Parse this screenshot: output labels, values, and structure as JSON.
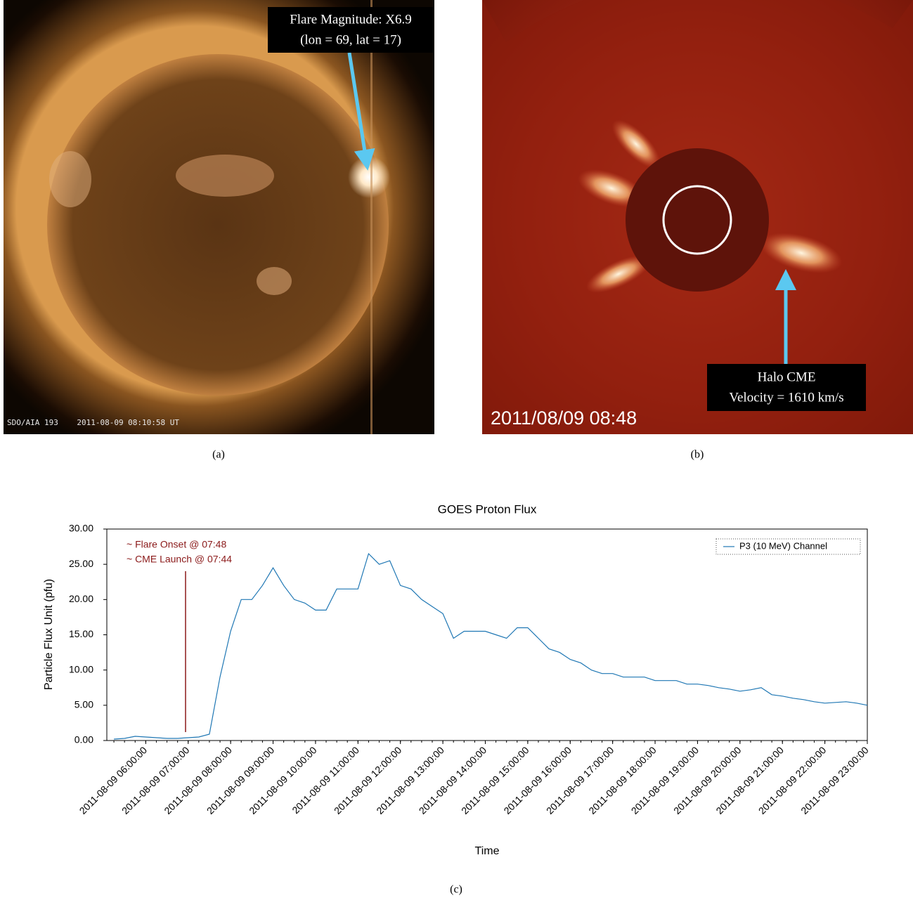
{
  "panels": [
    {
      "caption": "(a)",
      "annotation": [
        "Flare Magnitude: X6.9",
        "(lon = 69, lat = 17)"
      ],
      "stamp": "SDO/AIA 193    2011-08-09 08:10:58 UT"
    },
    {
      "caption": "(b)",
      "annotation": [
        "Halo CME",
        "Velocity = 1610 km/s"
      ],
      "stamp": "2011/08/09 08:48"
    }
  ],
  "chart_data": {
    "type": "line",
    "title": "GOES Proton Flux",
    "caption": "(c)",
    "xlabel": "Time",
    "ylabel": "Particle Flux Unit (pfu)",
    "annotations": [
      "~ Flare Onset @ 07:48",
      "~ CME Launch @ 07:44"
    ],
    "legend": "upper right",
    "xlim": [
      "2011-08-09 05:05:00",
      "2011-08-09 23:00:00"
    ],
    "xticks": [
      "2011-08-09 06:00:00",
      "2011-08-09 07:00:00",
      "2011-08-09 08:00:00",
      "2011-08-09 09:00:00",
      "2011-08-09 10:00:00",
      "2011-08-09 11:00:00",
      "2011-08-09 12:00:00",
      "2011-08-09 13:00:00",
      "2011-08-09 14:00:00",
      "2011-08-09 15:00:00",
      "2011-08-09 16:00:00",
      "2011-08-09 17:00:00",
      "2011-08-09 18:00:00",
      "2011-08-09 19:00:00",
      "2011-08-09 20:00:00",
      "2011-08-09 21:00:00",
      "2011-08-09 22:00:00",
      "2011-08-09 23:00:00"
    ],
    "ylim": [
      0,
      30
    ],
    "yticks": [
      {
        "value": 0,
        "label": "0.00"
      },
      {
        "value": 5,
        "label": "5.00"
      },
      {
        "value": 10,
        "label": "10.00"
      },
      {
        "value": 15,
        "label": "15.00"
      },
      {
        "value": 20,
        "label": "20.00"
      },
      {
        "value": 25,
        "label": "25.00"
      },
      {
        "value": 30,
        "label": "30.00"
      }
    ],
    "x": [
      "2011-08-09 05:15:00",
      "2011-08-09 05:30:00",
      "2011-08-09 05:45:00",
      "2011-08-09 06:00:00",
      "2011-08-09 06:15:00",
      "2011-08-09 06:30:00",
      "2011-08-09 06:45:00",
      "2011-08-09 07:00:00",
      "2011-08-09 07:15:00",
      "2011-08-09 07:30:00",
      "2011-08-09 07:45:00",
      "2011-08-09 08:00:00",
      "2011-08-09 08:15:00",
      "2011-08-09 08:30:00",
      "2011-08-09 08:45:00",
      "2011-08-09 09:00:00",
      "2011-08-09 09:15:00",
      "2011-08-09 09:30:00",
      "2011-08-09 09:45:00",
      "2011-08-09 10:00:00",
      "2011-08-09 10:15:00",
      "2011-08-09 10:30:00",
      "2011-08-09 10:45:00",
      "2011-08-09 11:00:00",
      "2011-08-09 11:15:00",
      "2011-08-09 11:30:00",
      "2011-08-09 11:45:00",
      "2011-08-09 12:00:00",
      "2011-08-09 12:15:00",
      "2011-08-09 12:30:00",
      "2011-08-09 12:45:00",
      "2011-08-09 13:00:00",
      "2011-08-09 13:15:00",
      "2011-08-09 13:30:00",
      "2011-08-09 13:45:00",
      "2011-08-09 14:00:00",
      "2011-08-09 14:15:00",
      "2011-08-09 14:30:00",
      "2011-08-09 14:45:00",
      "2011-08-09 15:00:00",
      "2011-08-09 15:15:00",
      "2011-08-09 15:30:00",
      "2011-08-09 15:45:00",
      "2011-08-09 16:00:00",
      "2011-08-09 16:15:00",
      "2011-08-09 16:30:00",
      "2011-08-09 16:45:00",
      "2011-08-09 17:00:00",
      "2011-08-09 17:15:00",
      "2011-08-09 17:30:00",
      "2011-08-09 17:45:00",
      "2011-08-09 18:00:00",
      "2011-08-09 18:15:00",
      "2011-08-09 18:30:00",
      "2011-08-09 18:45:00",
      "2011-08-09 19:00:00",
      "2011-08-09 19:15:00",
      "2011-08-09 19:30:00",
      "2011-08-09 19:45:00",
      "2011-08-09 20:00:00",
      "2011-08-09 20:15:00",
      "2011-08-09 20:30:00",
      "2011-08-09 20:45:00",
      "2011-08-09 21:00:00",
      "2011-08-09 21:15:00",
      "2011-08-09 21:30:00",
      "2011-08-09 21:45:00",
      "2011-08-09 22:00:00",
      "2011-08-09 22:15:00",
      "2011-08-09 22:30:00",
      "2011-08-09 22:45:00",
      "2011-08-09 23:00:00"
    ],
    "series": [
      {
        "name": "P3 (10 MeV) Channel",
        "color": "#1f77b4",
        "values": [
          0.2,
          0.3,
          0.6,
          0.5,
          0.4,
          0.3,
          0.3,
          0.4,
          0.5,
          0.9,
          9.0,
          15.5,
          20,
          20,
          22,
          24.5,
          22,
          20,
          19.5,
          18.5,
          18.5,
          21.5,
          21.5,
          21.5,
          26.5,
          25,
          25.5,
          22,
          21.5,
          20,
          19,
          18,
          14.5,
          15.5,
          15.5,
          15.5,
          15,
          14.5,
          16,
          16,
          14.5,
          13,
          12.5,
          11.5,
          11,
          10,
          9.5,
          9.5,
          9,
          9,
          9,
          8.5,
          8.5,
          8.5,
          8,
          8,
          7.8,
          7.5,
          7.3,
          7,
          7.2,
          7.5,
          6.5,
          6.3,
          6,
          5.8,
          5.5,
          5.3,
          5.4,
          5.5,
          5.3,
          5.0
        ]
      }
    ]
  }
}
